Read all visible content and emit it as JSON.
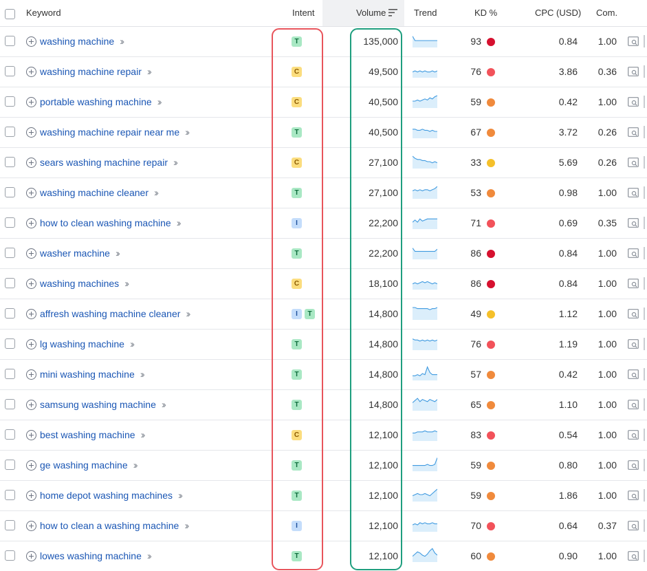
{
  "header": {
    "keyword": "Keyword",
    "intent": "Intent",
    "volume": "Volume",
    "trend": "Trend",
    "kd": "KD %",
    "cpc": "CPC (USD)",
    "com": "Com."
  },
  "colors": {
    "kd_red_dark": "#d6102f",
    "kd_red": "#f2525a",
    "kd_orange": "#f08a3c",
    "kd_yellow": "#f5c02a",
    "link": "#1a56b4",
    "highlight_intent": "#e8545b",
    "highlight_volume": "#1e9e7e"
  },
  "rows": [
    {
      "keyword": "washing machine",
      "intent": [
        "T"
      ],
      "volume": "135,000",
      "kd": "93",
      "kd_color": "#d6102f",
      "cpc": "0.84",
      "com": "1.00",
      "trend": [
        9,
        5,
        5,
        5,
        5,
        5,
        5,
        5,
        5,
        5,
        5
      ]
    },
    {
      "keyword": "washing machine repair",
      "intent": [
        "C"
      ],
      "volume": "49,500",
      "kd": "76",
      "kd_color": "#f2525a",
      "cpc": "3.86",
      "com": "0.36",
      "trend": [
        4,
        5,
        4,
        5,
        4,
        5,
        4,
        4,
        5,
        4,
        5
      ]
    },
    {
      "keyword": "portable washing machine",
      "intent": [
        "C"
      ],
      "volume": "40,500",
      "kd": "59",
      "kd_color": "#f08a3c",
      "cpc": "0.42",
      "com": "1.00",
      "trend": [
        5,
        5,
        6,
        5,
        6,
        7,
        6,
        8,
        7,
        9,
        10
      ]
    },
    {
      "keyword": "washing machine repair near me",
      "intent": [
        "T"
      ],
      "volume": "40,500",
      "kd": "67",
      "kd_color": "#f08a3c",
      "cpc": "3.72",
      "com": "0.26",
      "trend": [
        7,
        7,
        6,
        6,
        7,
        6,
        6,
        5,
        6,
        5,
        5
      ]
    },
    {
      "keyword": "sears washing machine repair",
      "intent": [
        "C"
      ],
      "volume": "27,100",
      "kd": "33",
      "kd_color": "#f5c02a",
      "cpc": "5.69",
      "com": "0.26",
      "trend": [
        10,
        8,
        7,
        7,
        6,
        6,
        5,
        5,
        4,
        5,
        4
      ]
    },
    {
      "keyword": "washing machine cleaner",
      "intent": [
        "T"
      ],
      "volume": "27,100",
      "kd": "53",
      "kd_color": "#f08a3c",
      "cpc": "0.98",
      "com": "1.00",
      "trend": [
        6,
        7,
        6,
        7,
        6,
        7,
        7,
        6,
        7,
        8,
        10
      ]
    },
    {
      "keyword": "how to clean washing machine",
      "intent": [
        "I"
      ],
      "volume": "22,200",
      "kd": "71",
      "kd_color": "#f2525a",
      "cpc": "0.69",
      "com": "0.35",
      "trend": [
        5,
        7,
        5,
        8,
        6,
        7,
        8,
        8,
        8,
        8,
        8
      ]
    },
    {
      "keyword": "washer machine",
      "intent": [
        "T"
      ],
      "volume": "22,200",
      "kd": "86",
      "kd_color": "#d6102f",
      "cpc": "0.84",
      "com": "1.00",
      "trend": [
        9,
        6,
        6,
        6,
        6,
        6,
        6,
        6,
        6,
        6,
        8
      ]
    },
    {
      "keyword": "washing machines",
      "intent": [
        "C"
      ],
      "volume": "18,100",
      "kd": "86",
      "kd_color": "#d6102f",
      "cpc": "0.84",
      "com": "1.00",
      "trend": [
        4,
        5,
        4,
        5,
        6,
        5,
        6,
        5,
        4,
        5,
        4
      ]
    },
    {
      "keyword": "affresh washing machine cleaner",
      "intent": [
        "I",
        "T"
      ],
      "volume": "14,800",
      "kd": "49",
      "kd_color": "#f5c02a",
      "cpc": "1.12",
      "com": "1.00",
      "trend": [
        10,
        10,
        9,
        9,
        9,
        9,
        9,
        8,
        9,
        9,
        10
      ]
    },
    {
      "keyword": "lg washing machine",
      "intent": [
        "T"
      ],
      "volume": "14,800",
      "kd": "76",
      "kd_color": "#f2525a",
      "cpc": "1.19",
      "com": "1.00",
      "trend": [
        9,
        8,
        8,
        7,
        8,
        7,
        8,
        7,
        8,
        7,
        8
      ]
    },
    {
      "keyword": "mini washing machine",
      "intent": [
        "T"
      ],
      "volume": "14,800",
      "kd": "57",
      "kd_color": "#f08a3c",
      "cpc": "0.42",
      "com": "1.00",
      "trend": [
        3,
        3,
        4,
        3,
        5,
        4,
        11,
        6,
        4,
        4,
        4
      ]
    },
    {
      "keyword": "samsung washing machine",
      "intent": [
        "T"
      ],
      "volume": "14,800",
      "kd": "65",
      "kd_color": "#f08a3c",
      "cpc": "1.10",
      "com": "1.00",
      "trend": [
        6,
        8,
        10,
        7,
        9,
        8,
        7,
        9,
        8,
        7,
        9
      ]
    },
    {
      "keyword": "best washing machine",
      "intent": [
        "C"
      ],
      "volume": "12,100",
      "kd": "83",
      "kd_color": "#f2525a",
      "cpc": "0.54",
      "com": "1.00",
      "trend": [
        6,
        6,
        7,
        7,
        7,
        8,
        7,
        7,
        7,
        8,
        7
      ]
    },
    {
      "keyword": "ge washing machine",
      "intent": [
        "T"
      ],
      "volume": "12,100",
      "kd": "59",
      "kd_color": "#f08a3c",
      "cpc": "0.80",
      "com": "1.00",
      "trend": [
        4,
        4,
        4,
        4,
        4,
        4,
        5,
        4,
        4,
        5,
        11
      ]
    },
    {
      "keyword": "home depot washing machines",
      "intent": [
        "T"
      ],
      "volume": "12,100",
      "kd": "59",
      "kd_color": "#f08a3c",
      "cpc": "1.86",
      "com": "1.00",
      "trend": [
        4,
        5,
        6,
        5,
        5,
        6,
        5,
        4,
        6,
        8,
        10
      ]
    },
    {
      "keyword": "how to clean a washing machine",
      "intent": [
        "I"
      ],
      "volume": "12,100",
      "kd": "70",
      "kd_color": "#f2525a",
      "cpc": "0.64",
      "com": "0.37",
      "trend": [
        5,
        6,
        5,
        7,
        6,
        7,
        6,
        6,
        7,
        6,
        6
      ]
    },
    {
      "keyword": "lowes washing machine",
      "intent": [
        "T"
      ],
      "volume": "12,100",
      "kd": "60",
      "kd_color": "#f08a3c",
      "cpc": "0.90",
      "com": "1.00",
      "trend": [
        4,
        6,
        8,
        7,
        5,
        4,
        6,
        9,
        11,
        7,
        5
      ]
    }
  ]
}
